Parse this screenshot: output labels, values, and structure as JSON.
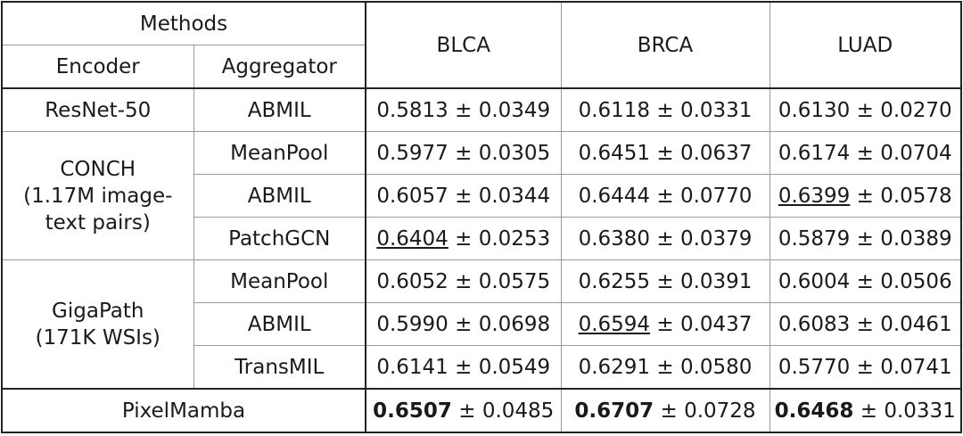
{
  "header": {
    "methods": "Methods",
    "encoder": "Encoder",
    "aggregator": "Aggregator",
    "datasets": [
      "BLCA",
      "BRCA",
      "LUAD"
    ]
  },
  "rows": [
    {
      "agg": "ABMIL",
      "cells": [
        {
          "mean": "0.5813",
          "std": "± 0.0349"
        },
        {
          "mean": "0.6118",
          "std": "± 0.0331"
        },
        {
          "mean": "0.6130",
          "std": "± 0.0270"
        }
      ]
    },
    {
      "agg": "MeanPool",
      "cells": [
        {
          "mean": "0.5977",
          "std": "± 0.0305"
        },
        {
          "mean": "0.6451",
          "std": "± 0.0637"
        },
        {
          "mean": "0.6174",
          "std": "± 0.0704"
        }
      ]
    },
    {
      "agg": "ABMIL",
      "cells": [
        {
          "mean": "0.6057",
          "std": "± 0.0344"
        },
        {
          "mean": "0.6444",
          "std": "± 0.0770"
        },
        {
          "mean": "0.6399",
          "std": "± 0.0578",
          "underline": true
        }
      ]
    },
    {
      "agg": "PatchGCN",
      "cells": [
        {
          "mean": "0.6404",
          "std": "± 0.0253",
          "underline": true
        },
        {
          "mean": "0.6380",
          "std": "± 0.0379"
        },
        {
          "mean": "0.5879",
          "std": "± 0.0389"
        }
      ]
    },
    {
      "agg": "MeanPool",
      "cells": [
        {
          "mean": "0.6052",
          "std": "± 0.0575"
        },
        {
          "mean": "0.6255",
          "std": "± 0.0391"
        },
        {
          "mean": "0.6004",
          "std": "± 0.0506"
        }
      ]
    },
    {
      "agg": "ABMIL",
      "cells": [
        {
          "mean": "0.5990",
          "std": "± 0.0698"
        },
        {
          "mean": "0.6594",
          "std": "± 0.0437",
          "underline": true
        },
        {
          "mean": "0.6083",
          "std": "± 0.0461"
        }
      ]
    },
    {
      "agg": "TransMIL",
      "cells": [
        {
          "mean": "0.6141",
          "std": "± 0.0549"
        },
        {
          "mean": "0.6291",
          "std": "± 0.0580"
        },
        {
          "mean": "0.5770",
          "std": "± 0.0741"
        }
      ]
    }
  ],
  "encoders": {
    "resnet": "ResNet-50",
    "conch": [
      "CONCH",
      "(1.17M image-",
      "text pairs)"
    ],
    "gigapath": [
      "GigaPath",
      "(171K WSIs)"
    ]
  },
  "final": {
    "method": "PixelMamba",
    "cells": [
      {
        "mean": "0.6507",
        "std": "± 0.0485",
        "bold": true
      },
      {
        "mean": "0.6707",
        "std": "± 0.0728",
        "bold": true
      },
      {
        "mean": "0.6468",
        "std": "± 0.0331",
        "bold": true
      }
    ]
  }
}
